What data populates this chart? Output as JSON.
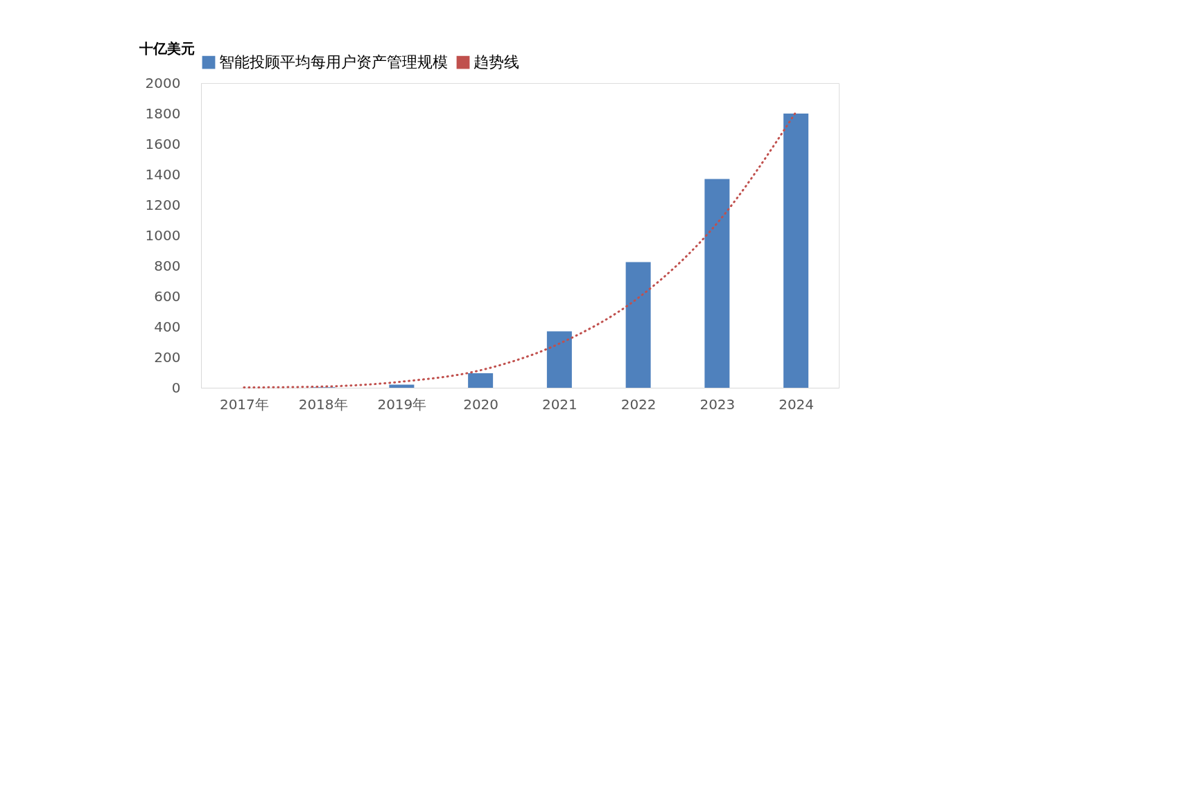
{
  "chart_data": {
    "type": "bar",
    "ylabel": "十亿美元",
    "categories": [
      "2017年",
      "2018年",
      "2019年",
      "2020",
      "2021",
      "2022",
      "2023",
      "2024"
    ],
    "series": [
      {
        "name": "智能投顾平均每用户资产管理规模",
        "color": "#4f81bd",
        "values": [
          null,
          3,
          20,
          95,
          370,
          825,
          1370,
          1800
        ]
      },
      {
        "name": "趋势线",
        "type": "line",
        "color": "#c0504d",
        "line_style": "dotted",
        "values": [
          2,
          8,
          40,
          115,
          290,
          590,
          1080,
          1810
        ]
      }
    ],
    "ylim": [
      0,
      2000
    ],
    "yticks": [
      0,
      200,
      400,
      600,
      800,
      1000,
      1200,
      1400,
      1600,
      1800,
      2000
    ],
    "grid": false,
    "legend": "top"
  }
}
